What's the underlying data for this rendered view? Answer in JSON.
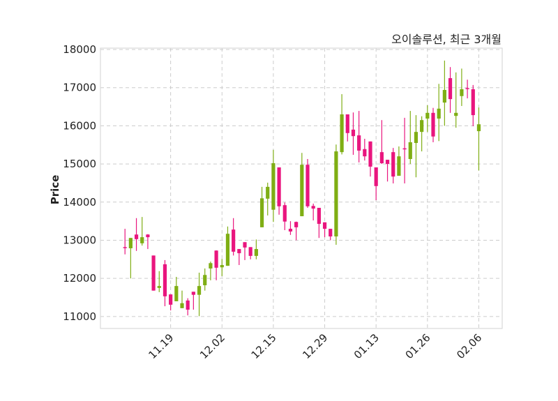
{
  "chart_data": {
    "type": "candlestick",
    "title": "오이솔루션, 최근 3개월",
    "xlabel": "",
    "ylabel": "Price",
    "ylim": [
      10687,
      18037
    ],
    "xlim": [
      -4.3,
      66.1
    ],
    "grid": true,
    "yticks": [
      11000,
      12000,
      13000,
      14000,
      15000,
      16000,
      17000,
      18000
    ],
    "ytick_labels": [
      "11000",
      "12000",
      "13000",
      "14000",
      "15000",
      "16000",
      "17000",
      "18000"
    ],
    "xticks": [
      {
        "index": 8,
        "label": "11.19"
      },
      {
        "index": 17,
        "label": "12.02"
      },
      {
        "index": 26,
        "label": "12.15"
      },
      {
        "index": 35,
        "label": "12.29"
      },
      {
        "index": 44,
        "label": "01.13"
      },
      {
        "index": 53,
        "label": "01.26"
      },
      {
        "index": 62,
        "label": "02.06"
      }
    ],
    "colors": {
      "up": "#7fae14",
      "down": "#e9157e",
      "grid": "#cccccc",
      "frame": "#d9d9d9"
    },
    "ohlc_columns": [
      "open",
      "high",
      "low",
      "close"
    ],
    "candles": [
      [
        12820,
        13300,
        12630,
        12800
      ],
      [
        12790,
        13060,
        12000,
        13060
      ],
      [
        13150,
        13580,
        12720,
        13030
      ],
      [
        12920,
        13610,
        12860,
        13080
      ],
      [
        13150,
        13160,
        12770,
        13080
      ],
      [
        12600,
        12600,
        11680,
        11680
      ],
      [
        11750,
        12190,
        11640,
        11800
      ],
      [
        12370,
        12480,
        11270,
        11530
      ],
      [
        11580,
        11580,
        11160,
        11310
      ],
      [
        11400,
        12040,
        11400,
        11800
      ],
      [
        11220,
        11680,
        11220,
        11350
      ],
      [
        11420,
        11480,
        11030,
        11180
      ],
      [
        11650,
        11650,
        11180,
        11570
      ],
      [
        11570,
        12150,
        11010,
        11800
      ],
      [
        11820,
        12260,
        11680,
        12090
      ],
      [
        12260,
        12440,
        11950,
        12400
      ],
      [
        12730,
        12735,
        11950,
        12280
      ],
      [
        12290,
        12510,
        12060,
        12350
      ],
      [
        12330,
        13360,
        12330,
        13170
      ],
      [
        13280,
        13580,
        12600,
        12700
      ],
      [
        12770,
        12770,
        12350,
        12660
      ],
      [
        12950,
        12950,
        12480,
        12810
      ],
      [
        12820,
        12820,
        12500,
        12590
      ],
      [
        12590,
        13020,
        12500,
        12770
      ],
      [
        13340,
        14400,
        13340,
        14100
      ],
      [
        14090,
        14510,
        13650,
        14400
      ],
      [
        13800,
        15370,
        13480,
        15020
      ],
      [
        14910,
        14910,
        13670,
        13890
      ],
      [
        13920,
        13990,
        13265,
        13490
      ],
      [
        13300,
        13500,
        13140,
        13230
      ],
      [
        13480,
        13490,
        13000,
        13340
      ],
      [
        13630,
        15290,
        13630,
        14980
      ],
      [
        14980,
        15130,
        13850,
        13890
      ],
      [
        13900,
        13960,
        13520,
        13830
      ],
      [
        13850,
        13850,
        13060,
        13430
      ],
      [
        13470,
        13470,
        13080,
        13300
      ],
      [
        13300,
        13300,
        13000,
        13100
      ],
      [
        13100,
        15510,
        12880,
        15330
      ],
      [
        15310,
        16830,
        15250,
        16300
      ],
      [
        16300,
        16300,
        15590,
        15810
      ],
      [
        15900,
        16350,
        15240,
        15730
      ],
      [
        15750,
        16390,
        15040,
        15350
      ],
      [
        15390,
        15660,
        15090,
        15200
      ],
      [
        15590,
        15590,
        14670,
        14930
      ],
      [
        14910,
        14910,
        14050,
        14420
      ],
      [
        15310,
        16150,
        15000,
        15020
      ],
      [
        15110,
        15110,
        14540,
        15000
      ],
      [
        15310,
        15420,
        14490,
        14670
      ],
      [
        14690,
        15460,
        14690,
        15200
      ],
      [
        15410,
        16210,
        14490,
        15390
      ],
      [
        15130,
        16390,
        15000,
        15570
      ],
      [
        15550,
        16280,
        14650,
        15840
      ],
      [
        15840,
        16250,
        15330,
        16150
      ],
      [
        16190,
        16540,
        15840,
        16340
      ],
      [
        16340,
        16470,
        15570,
        15720
      ],
      [
        16190,
        17100,
        15600,
        16450
      ],
      [
        16610,
        17710,
        16000,
        16940
      ],
      [
        17250,
        17540,
        16340,
        16700
      ],
      [
        16260,
        17400,
        15950,
        16340
      ],
      [
        16780,
        17500,
        16520,
        16960
      ],
      [
        16990,
        17210,
        16720,
        16970
      ],
      [
        16960,
        17070,
        15990,
        16280
      ],
      [
        15860,
        16480,
        14830,
        16040
      ]
    ]
  }
}
